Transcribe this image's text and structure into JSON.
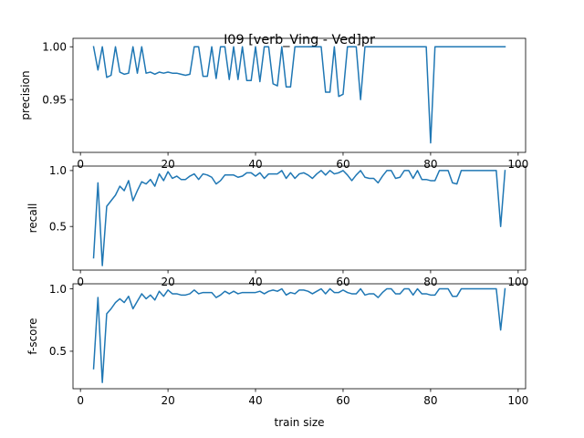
{
  "chart_data": [
    {
      "type": "line",
      "title": "I09 [verb_Ving - Ved]pr",
      "xlabel": "",
      "ylabel": "precision",
      "xlim": [
        -1.7,
        101.7
      ],
      "ylim": [
        0.9,
        1.008
      ],
      "xticks": [
        0,
        20,
        40,
        60,
        80,
        100
      ],
      "yticks": [
        0.95,
        1.0
      ],
      "ytick_labels": [
        "0.95",
        "1.00"
      ],
      "grid": false,
      "series": [
        {
          "color": "#1f77b4",
          "x": [
            3,
            4,
            5,
            6,
            7,
            8,
            9,
            10,
            11,
            12,
            13,
            14,
            15,
            16,
            17,
            18,
            19,
            20,
            21,
            22,
            23,
            24,
            25,
            26,
            27,
            28,
            29,
            30,
            31,
            32,
            33,
            34,
            35,
            36,
            37,
            38,
            39,
            40,
            41,
            42,
            43,
            44,
            45,
            46,
            47,
            48,
            49,
            50,
            51,
            52,
            53,
            54,
            55,
            56,
            57,
            58,
            59,
            60,
            61,
            62,
            63,
            64,
            65,
            66,
            67,
            68,
            69,
            70,
            71,
            72,
            73,
            74,
            75,
            76,
            77,
            78,
            79,
            80,
            81,
            82,
            83,
            84,
            85,
            86,
            87,
            88,
            89,
            90,
            91,
            92,
            93,
            94,
            95,
            96,
            97
          ],
          "y": [
            1.0,
            0.978,
            1.0,
            0.971,
            0.973,
            1.0,
            0.976,
            0.974,
            0.975,
            1.0,
            0.975,
            1.0,
            0.975,
            0.976,
            0.974,
            0.976,
            0.975,
            0.976,
            0.975,
            0.975,
            0.974,
            0.973,
            0.974,
            1.0,
            1.0,
            0.972,
            0.972,
            1.0,
            0.97,
            1.0,
            1.0,
            0.969,
            1.0,
            0.969,
            1.0,
            0.968,
            0.968,
            1.0,
            0.967,
            1.0,
            1.0,
            0.965,
            0.963,
            1.0,
            0.962,
            0.962,
            1.0,
            1.0,
            1.0,
            1.0,
            1.0,
            1.0,
            1.0,
            0.957,
            0.957,
            1.0,
            0.953,
            0.955,
            1.0,
            1.0,
            1.0,
            0.95,
            1.0,
            1.0,
            1.0,
            1.0,
            1.0,
            1.0,
            1.0,
            1.0,
            1.0,
            1.0,
            1.0,
            1.0,
            1.0,
            1.0,
            1.0,
            0.909,
            1.0,
            1.0,
            1.0,
            1.0,
            1.0,
            1.0,
            1.0,
            1.0,
            1.0,
            1.0,
            1.0,
            1.0,
            1.0,
            1.0,
            1.0,
            1.0,
            1.0
          ]
        }
      ]
    },
    {
      "type": "line",
      "title": "",
      "xlabel": "",
      "ylabel": "recall",
      "xlim": [
        -1.7,
        101.7
      ],
      "ylim": [
        0.11,
        1.04
      ],
      "xticks": [
        0,
        20,
        40,
        60,
        80,
        100
      ],
      "yticks": [
        0.5,
        1.0
      ],
      "ytick_labels": [
        "0.5",
        "1.0"
      ],
      "grid": false,
      "series": [
        {
          "color": "#1f77b4",
          "x": [
            3,
            4,
            5,
            6,
            7,
            8,
            9,
            10,
            11,
            12,
            13,
            14,
            15,
            16,
            17,
            18,
            19,
            20,
            21,
            22,
            23,
            24,
            25,
            26,
            27,
            28,
            29,
            30,
            31,
            32,
            33,
            34,
            35,
            36,
            37,
            38,
            39,
            40,
            41,
            42,
            43,
            44,
            45,
            46,
            47,
            48,
            49,
            50,
            51,
            52,
            53,
            54,
            55,
            56,
            57,
            58,
            59,
            60,
            61,
            62,
            63,
            64,
            65,
            66,
            67,
            68,
            69,
            70,
            71,
            72,
            73,
            74,
            75,
            76,
            77,
            78,
            79,
            80,
            81,
            82,
            83,
            84,
            85,
            86,
            87,
            88,
            89,
            90,
            91,
            92,
            93,
            94,
            95,
            96,
            97
          ],
          "y": [
            0.22,
            0.89,
            0.15,
            0.68,
            0.73,
            0.78,
            0.86,
            0.82,
            0.91,
            0.73,
            0.82,
            0.9,
            0.88,
            0.92,
            0.86,
            0.97,
            0.91,
            0.99,
            0.93,
            0.95,
            0.92,
            0.92,
            0.95,
            0.97,
            0.92,
            0.97,
            0.96,
            0.94,
            0.88,
            0.91,
            0.96,
            0.96,
            0.96,
            0.94,
            0.95,
            0.98,
            0.98,
            0.95,
            0.98,
            0.93,
            0.97,
            0.97,
            0.97,
            1.0,
            0.93,
            0.98,
            0.93,
            0.97,
            0.98,
            0.96,
            0.93,
            0.97,
            1.0,
            0.96,
            1.0,
            0.97,
            0.98,
            1.0,
            0.96,
            0.91,
            0.96,
            1.0,
            0.94,
            0.93,
            0.93,
            0.89,
            0.95,
            1.0,
            1.0,
            0.93,
            0.94,
            1.0,
            1.0,
            0.93,
            1.0,
            0.92,
            0.92,
            0.91,
            0.91,
            1.0,
            1.0,
            1.0,
            0.89,
            0.88,
            1.0,
            1.0,
            1.0,
            1.0,
            1.0,
            1.0,
            1.0,
            1.0,
            1.0,
            0.5,
            1.0
          ]
        }
      ]
    },
    {
      "type": "line",
      "title": "",
      "xlabel": "train size",
      "ylabel": "f-score",
      "xlim": [
        -1.7,
        101.7
      ],
      "ylim": [
        0.2,
        1.04
      ],
      "xticks": [
        0,
        20,
        40,
        60,
        80,
        100
      ],
      "yticks": [
        0.5,
        1.0
      ],
      "ytick_labels": [
        "0.5",
        "1.0"
      ],
      "grid": false,
      "series": [
        {
          "color": "#1f77b4",
          "x": [
            3,
            4,
            5,
            6,
            7,
            8,
            9,
            10,
            11,
            12,
            13,
            14,
            15,
            16,
            17,
            18,
            19,
            20,
            21,
            22,
            23,
            24,
            25,
            26,
            27,
            28,
            29,
            30,
            31,
            32,
            33,
            34,
            35,
            36,
            37,
            38,
            39,
            40,
            41,
            42,
            43,
            44,
            45,
            46,
            47,
            48,
            49,
            50,
            51,
            52,
            53,
            54,
            55,
            56,
            57,
            58,
            59,
            60,
            61,
            62,
            63,
            64,
            65,
            66,
            67,
            68,
            69,
            70,
            71,
            72,
            73,
            74,
            75,
            76,
            77,
            78,
            79,
            80,
            81,
            82,
            83,
            84,
            85,
            86,
            87,
            88,
            89,
            90,
            91,
            92,
            93,
            94,
            95,
            96,
            97
          ],
          "y": [
            0.36,
            0.93,
            0.25,
            0.8,
            0.84,
            0.89,
            0.92,
            0.89,
            0.94,
            0.84,
            0.9,
            0.96,
            0.92,
            0.95,
            0.91,
            0.98,
            0.94,
            0.99,
            0.96,
            0.96,
            0.95,
            0.95,
            0.96,
            0.99,
            0.96,
            0.97,
            0.97,
            0.97,
            0.93,
            0.95,
            0.98,
            0.96,
            0.98,
            0.96,
            0.97,
            0.97,
            0.97,
            0.97,
            0.98,
            0.96,
            0.98,
            0.99,
            0.98,
            1.0,
            0.95,
            0.97,
            0.96,
            0.99,
            0.99,
            0.98,
            0.96,
            0.98,
            1.0,
            0.96,
            1.0,
            0.97,
            0.97,
            0.99,
            0.97,
            0.96,
            0.96,
            1.0,
            0.95,
            0.96,
            0.96,
            0.93,
            0.97,
            1.0,
            1.0,
            0.96,
            0.96,
            1.0,
            1.0,
            0.95,
            1.0,
            0.96,
            0.96,
            0.95,
            0.95,
            1.0,
            1.0,
            1.0,
            0.94,
            0.94,
            1.0,
            1.0,
            1.0,
            1.0,
            1.0,
            1.0,
            1.0,
            1.0,
            1.0,
            0.67,
            1.0
          ]
        }
      ]
    }
  ]
}
